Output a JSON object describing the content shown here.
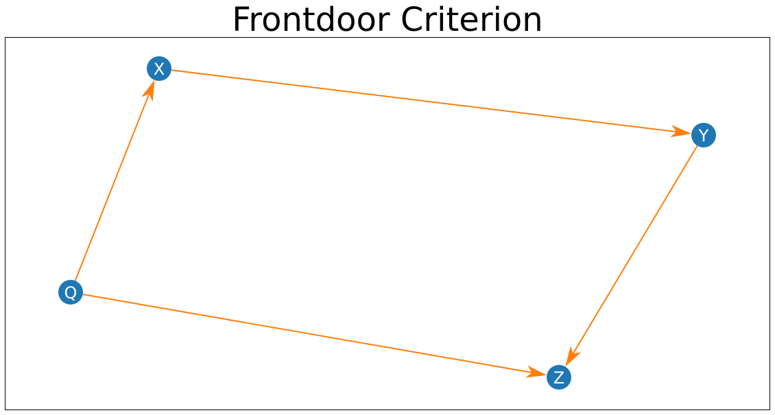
{
  "title": "Frontdoor Criterion",
  "colors": {
    "node": "#1f77b4",
    "edge": "#ff7f0e",
    "node_text": "#ffffff"
  },
  "nodes": [
    {
      "id": "X",
      "label": "X"
    },
    {
      "id": "Y",
      "label": "Y"
    },
    {
      "id": "Q",
      "label": "Q"
    },
    {
      "id": "Z",
      "label": "Z"
    }
  ],
  "edges": [
    {
      "from": "Q",
      "to": "X"
    },
    {
      "from": "X",
      "to": "Y"
    },
    {
      "from": "Y",
      "to": "Z"
    },
    {
      "from": "Q",
      "to": "Z"
    }
  ]
}
